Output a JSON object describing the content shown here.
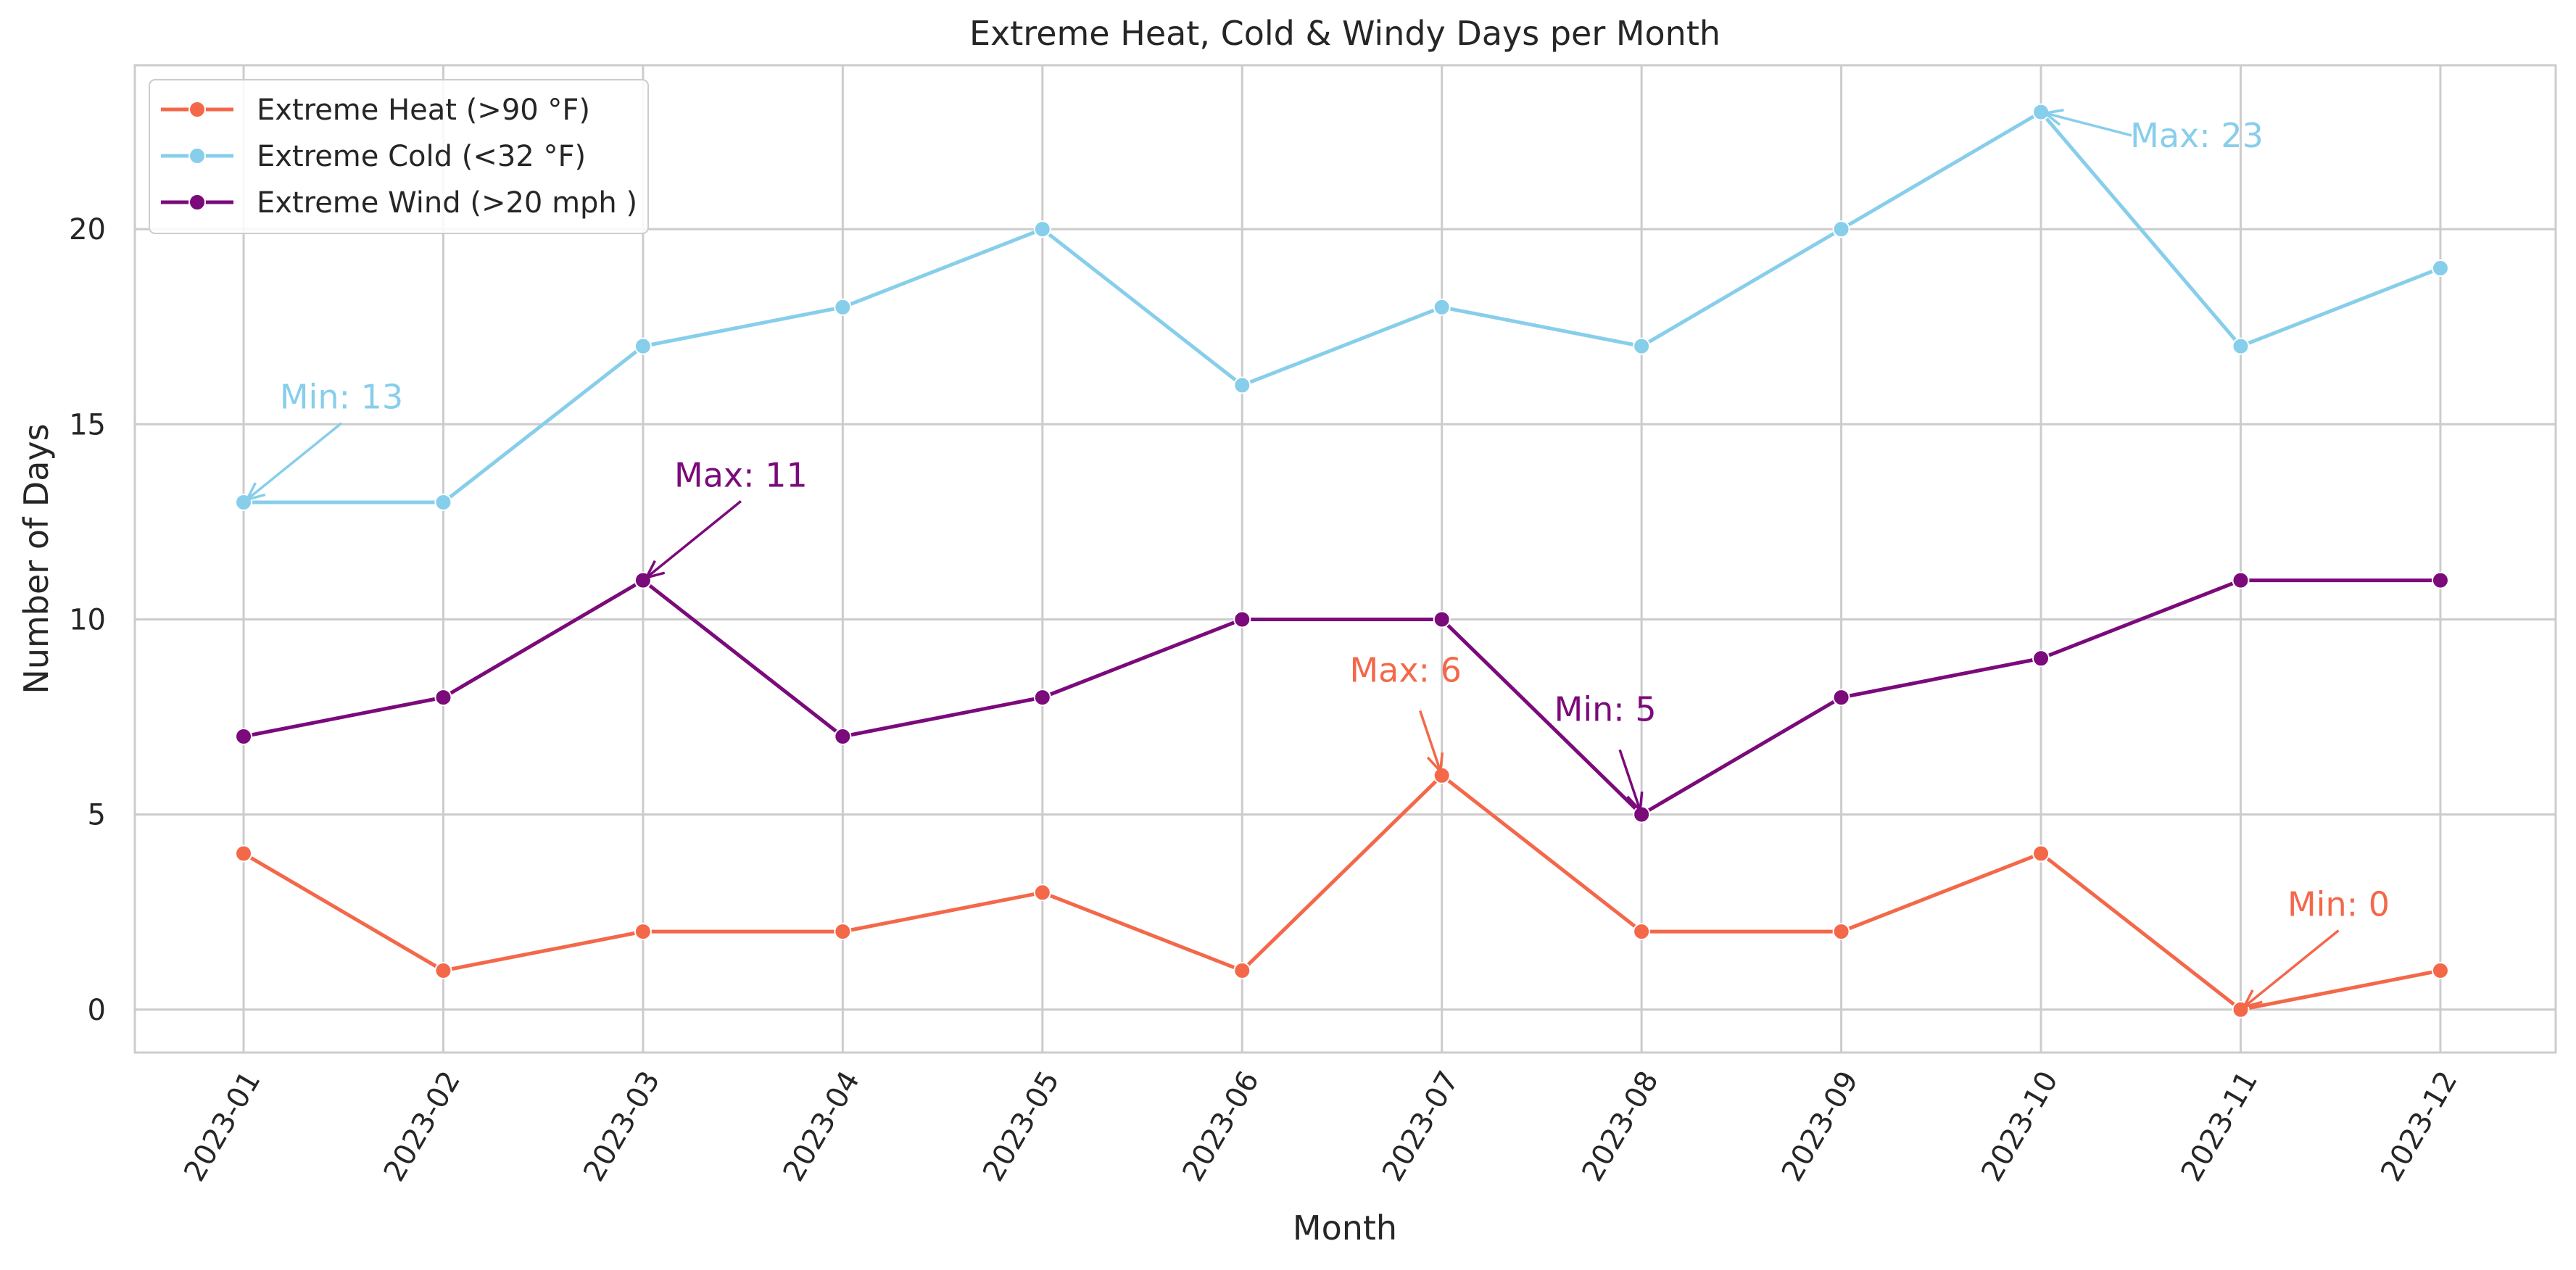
{
  "chart_data": {
    "type": "line",
    "title": "Extreme Heat, Cold & Windy Days per Month",
    "xlabel": "Month",
    "ylabel": "Number of Days",
    "categories": [
      "2023-01",
      "2023-02",
      "2023-03",
      "2023-04",
      "2023-05",
      "2023-06",
      "2023-07",
      "2023-08",
      "2023-09",
      "2023-10",
      "2023-11",
      "2023-12"
    ],
    "ylim": [
      -1.1,
      24.2
    ],
    "yticks": [
      0,
      5,
      10,
      15,
      20
    ],
    "grid": true,
    "legend_position": "upper-left",
    "series": [
      {
        "name": "Extreme Heat (>90 °F)",
        "color": "#f4684a",
        "values": [
          4,
          1,
          2,
          2,
          3,
          1,
          6,
          2,
          2,
          4,
          0,
          1
        ]
      },
      {
        "name": "Extreme Cold (<32 °F)",
        "color": "#87ceeb",
        "values": [
          13,
          13,
          17,
          18,
          20,
          16,
          18,
          17,
          20,
          23,
          17,
          19
        ]
      },
      {
        "name": "Extreme Wind (>20 mph )",
        "color": "#7b0a7b",
        "values": [
          7,
          8,
          11,
          7,
          8,
          10,
          10,
          5,
          8,
          9,
          11,
          11
        ]
      }
    ],
    "annotations": [
      {
        "text": "Min: 13",
        "series": 1,
        "index": 0,
        "text_at": [
          "2023-01",
          15.4
        ],
        "color": "#87ceeb"
      },
      {
        "text": "Max: 23",
        "series": 1,
        "index": 9,
        "text_at": [
          "2023-10",
          22.4
        ],
        "color": "#87ceeb"
      },
      {
        "text": "Max: 11",
        "series": 2,
        "index": 2,
        "text_at": [
          "2023-03",
          13.4
        ],
        "color": "#7b0a7b"
      },
      {
        "text": "Min: 5",
        "series": 2,
        "index": 7,
        "text_at": [
          "2023-08",
          7.4
        ],
        "color": "#7b0a7b"
      },
      {
        "text": "Max: 6",
        "series": 0,
        "index": 6,
        "text_at": [
          "2023-07",
          8.4
        ],
        "color": "#f4684a"
      },
      {
        "text": "Min: 0",
        "series": 0,
        "index": 10,
        "text_at": [
          "2023-11",
          2.4
        ],
        "color": "#f4684a"
      }
    ]
  }
}
